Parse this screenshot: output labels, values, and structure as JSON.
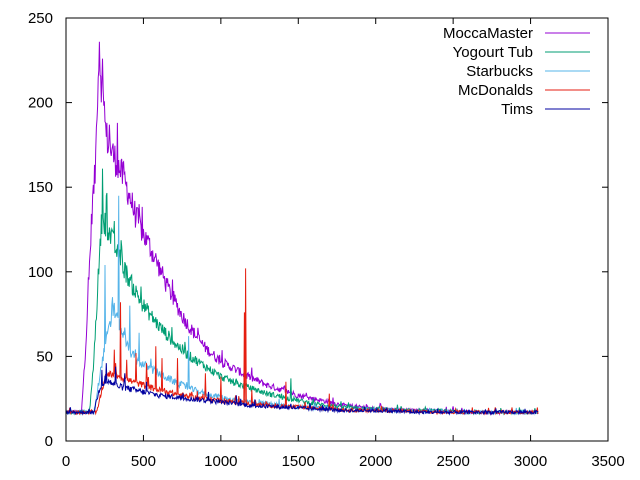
{
  "chart_data": {
    "type": "line",
    "title": "",
    "xlabel": "",
    "ylabel": "",
    "xlim": [
      0,
      3500
    ],
    "ylim": [
      0,
      250
    ],
    "x_ticks": [
      0,
      500,
      1000,
      1500,
      2000,
      2500,
      3000,
      3500
    ],
    "y_ticks": [
      0,
      50,
      100,
      150,
      200,
      250
    ],
    "grid": false,
    "legend_position": "top-right",
    "series": [
      {
        "name": "MoccaMaster",
        "color": "#9400d3",
        "points": [
          [
            0,
            17
          ],
          [
            100,
            17
          ],
          [
            130,
            60
          ],
          [
            150,
            100
          ],
          [
            170,
            140
          ],
          [
            190,
            160
          ],
          [
            200,
            200
          ],
          [
            215,
            230
          ],
          [
            230,
            210
          ],
          [
            260,
            180
          ],
          [
            300,
            170
          ],
          [
            350,
            160
          ],
          [
            400,
            148
          ],
          [
            450,
            133
          ],
          [
            500,
            122
          ],
          [
            550,
            113
          ],
          [
            600,
            103
          ],
          [
            650,
            92
          ],
          [
            700,
            83
          ],
          [
            750,
            74
          ],
          [
            800,
            67
          ],
          [
            900,
            55
          ],
          [
            1000,
            47
          ],
          [
            1100,
            42
          ],
          [
            1200,
            37
          ],
          [
            1300,
            33
          ],
          [
            1400,
            30
          ],
          [
            1500,
            27
          ],
          [
            1600,
            25
          ],
          [
            1700,
            23
          ],
          [
            1800,
            21
          ],
          [
            1900,
            20
          ],
          [
            2000,
            19
          ],
          [
            2100,
            19
          ],
          [
            2200,
            18
          ],
          [
            2400,
            18
          ],
          [
            2600,
            17
          ],
          [
            2800,
            17
          ],
          [
            3000,
            17
          ],
          [
            3050,
            17
          ]
        ],
        "spikes": [
          [
            215,
            236
          ],
          [
            235,
            226
          ],
          [
            280,
            187
          ],
          [
            330,
            188
          ],
          [
            370,
            165
          ],
          [
            470,
            140
          ],
          [
            540,
            120
          ],
          [
            620,
            100
          ]
        ]
      },
      {
        "name": "Yogourt Tub",
        "color": "#009e73",
        "points": [
          [
            0,
            17
          ],
          [
            150,
            17
          ],
          [
            170,
            35
          ],
          [
            190,
            65
          ],
          [
            210,
            100
          ],
          [
            230,
            130
          ],
          [
            250,
            130
          ],
          [
            300,
            118
          ],
          [
            350,
            107
          ],
          [
            400,
            97
          ],
          [
            450,
            88
          ],
          [
            500,
            80
          ],
          [
            600,
            68
          ],
          [
            700,
            58
          ],
          [
            800,
            50
          ],
          [
            900,
            44
          ],
          [
            1000,
            38
          ],
          [
            1100,
            34
          ],
          [
            1200,
            31
          ],
          [
            1300,
            28
          ],
          [
            1400,
            26
          ],
          [
            1500,
            24
          ],
          [
            1600,
            22
          ],
          [
            1700,
            21
          ],
          [
            1800,
            20
          ],
          [
            1900,
            19
          ],
          [
            2000,
            19
          ],
          [
            2200,
            18
          ],
          [
            2400,
            18
          ],
          [
            2600,
            17
          ],
          [
            2800,
            17
          ],
          [
            3000,
            17
          ],
          [
            3050,
            17
          ]
        ],
        "spikes": [
          [
            235,
            161
          ],
          [
            260,
            145
          ],
          [
            310,
            130
          ],
          [
            360,
            115
          ],
          [
            1450,
            37
          ]
        ]
      },
      {
        "name": "Starbucks",
        "color": "#56b4e9",
        "points": [
          [
            0,
            17
          ],
          [
            180,
            17
          ],
          [
            200,
            28
          ],
          [
            230,
            45
          ],
          [
            260,
            60
          ],
          [
            290,
            70
          ],
          [
            310,
            78
          ],
          [
            340,
            70
          ],
          [
            400,
            55
          ],
          [
            450,
            48
          ],
          [
            500,
            45
          ],
          [
            600,
            40
          ],
          [
            700,
            35
          ],
          [
            800,
            31
          ],
          [
            900,
            28
          ],
          [
            1000,
            26
          ],
          [
            1100,
            24
          ],
          [
            1200,
            23
          ],
          [
            1300,
            22
          ],
          [
            1400,
            21
          ],
          [
            1500,
            20
          ],
          [
            1700,
            19
          ],
          [
            1900,
            18
          ],
          [
            2100,
            18
          ],
          [
            2500,
            17
          ],
          [
            3000,
            17
          ],
          [
            3050,
            17
          ]
        ],
        "spikes": [
          [
            250,
            104
          ],
          [
            300,
            85
          ],
          [
            340,
            145
          ],
          [
            410,
            80
          ],
          [
            470,
            64
          ],
          [
            790,
            62
          ]
        ]
      },
      {
        "name": "McDonalds",
        "color": "#e51e10",
        "points": [
          [
            0,
            17
          ],
          [
            200,
            17
          ],
          [
            230,
            30
          ],
          [
            260,
            38
          ],
          [
            300,
            40
          ],
          [
            350,
            38
          ],
          [
            400,
            36
          ],
          [
            500,
            33
          ],
          [
            600,
            30
          ],
          [
            700,
            28
          ],
          [
            800,
            26
          ],
          [
            900,
            25
          ],
          [
            1000,
            24
          ],
          [
            1100,
            23
          ],
          [
            1200,
            22
          ],
          [
            1300,
            21
          ],
          [
            1500,
            20
          ],
          [
            1700,
            19
          ],
          [
            1900,
            18
          ],
          [
            2100,
            18
          ],
          [
            2400,
            17
          ],
          [
            3000,
            17
          ],
          [
            3050,
            17
          ]
        ],
        "spikes": [
          [
            310,
            54
          ],
          [
            350,
            82
          ],
          [
            390,
            48
          ],
          [
            450,
            52
          ],
          [
            520,
            46
          ],
          [
            580,
            56
          ],
          [
            620,
            49
          ],
          [
            720,
            49
          ],
          [
            900,
            40
          ],
          [
            1000,
            38
          ],
          [
            1150,
            76
          ],
          [
            1160,
            102
          ],
          [
            1200,
            30
          ],
          [
            1420,
            35
          ],
          [
            1700,
            28
          ]
        ]
      },
      {
        "name": "Tims",
        "color": "#0000a0",
        "points": [
          [
            0,
            17
          ],
          [
            180,
            17
          ],
          [
            200,
            25
          ],
          [
            220,
            32
          ],
          [
            250,
            35
          ],
          [
            280,
            35
          ],
          [
            300,
            34
          ],
          [
            350,
            32
          ],
          [
            400,
            31
          ],
          [
            500,
            29
          ],
          [
            600,
            27
          ],
          [
            700,
            26
          ],
          [
            800,
            25
          ],
          [
            900,
            24
          ],
          [
            1000,
            23
          ],
          [
            1100,
            22
          ],
          [
            1200,
            21
          ],
          [
            1400,
            20
          ],
          [
            1600,
            19
          ],
          [
            1800,
            18
          ],
          [
            2000,
            18
          ],
          [
            2300,
            17
          ],
          [
            3000,
            17
          ],
          [
            3050,
            17
          ]
        ],
        "spikes": [
          [
            230,
            42
          ],
          [
            260,
            46
          ],
          [
            320,
            44
          ],
          [
            380,
            40
          ],
          [
            520,
            35
          ],
          [
            920,
            29
          ],
          [
            1100,
            27
          ]
        ]
      }
    ]
  }
}
